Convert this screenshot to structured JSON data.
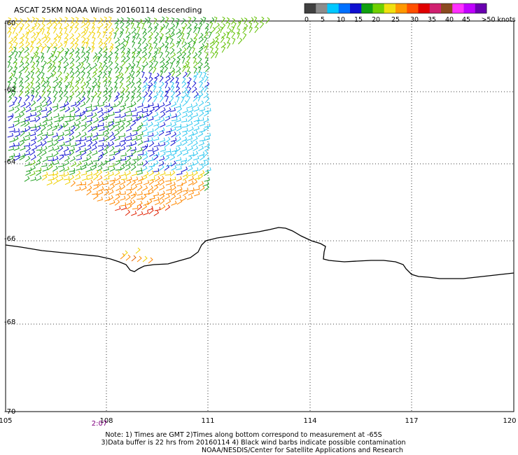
{
  "title": "ASCAT 25KM NOAA Winds 20160114 descending",
  "legend": {
    "colors": [
      "#404040",
      "#8c8c8c",
      "#00c8ff",
      "#0070ff",
      "#1010d0",
      "#10a010",
      "#70d000",
      "#f0e010",
      "#ff9800",
      "#ff5000",
      "#e00000",
      "#d02070",
      "#8a4a20",
      "#ff30ff",
      "#c000ff",
      "#6a00b0"
    ],
    "labels": [
      "0",
      "5",
      "10",
      "15",
      "20",
      "25",
      "30",
      "35",
      "40",
      "45",
      ">50 knots"
    ]
  },
  "lat_labels": [
    "-60",
    "-62",
    "-64",
    "-66",
    "-68",
    "-70"
  ],
  "lon_labels": [
    "105",
    "108",
    "111",
    "114",
    "117",
    "120"
  ],
  "time_label": "2:07",
  "notes": [
    "Note: 1) Times are GMT 2)Times along bottom correspond to measurement at -65S",
    "3)Data buffer is 22 hrs from 20160114 4) Black wind barbs indicate possible contamination",
    "NOAA/NESDIS/Center for Satellite Applications and Research"
  ],
  "colors": {
    "time_label": "#800080",
    "coast": "#000000",
    "grid": "#000000"
  }
}
